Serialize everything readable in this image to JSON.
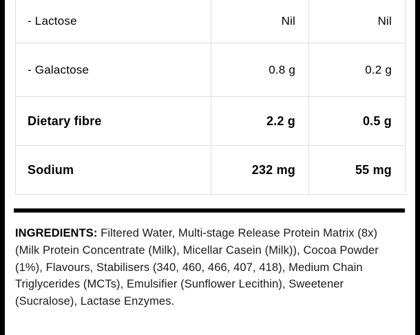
{
  "table": {
    "rows": [
      {
        "label": "- Lactose",
        "col1": "Nil",
        "col2": "Nil"
      },
      {
        "label": "- Galactose",
        "col1": "0.8 g",
        "col2": "0.2 g"
      },
      {
        "label": "Dietary fibre",
        "col1": "2.2 g",
        "col2": "0.5 g"
      },
      {
        "label": "Sodium",
        "col1": "232 mg",
        "col2": "55 mg"
      }
    ]
  },
  "ingredients": {
    "heading": "INGREDIENTS:",
    "body": " Filtered Water, Multi-stage Release Protein Matrix (8x) (Milk Protein Concentrate (Milk), Micellar Casein (Milk)), Cocoa Powder (1%), Flavours, Stabilisers (340, 460, 466, 407, 418), Medium Chain Triglycerides (MCTs), Emulsifier (Sunflower Lecithin), Sweetener (Sucralose), Lactase Enzymes."
  },
  "colors": {
    "label_border": "#000000",
    "table_border": "#dedede",
    "divider": "#000000",
    "text": "#000000"
  }
}
